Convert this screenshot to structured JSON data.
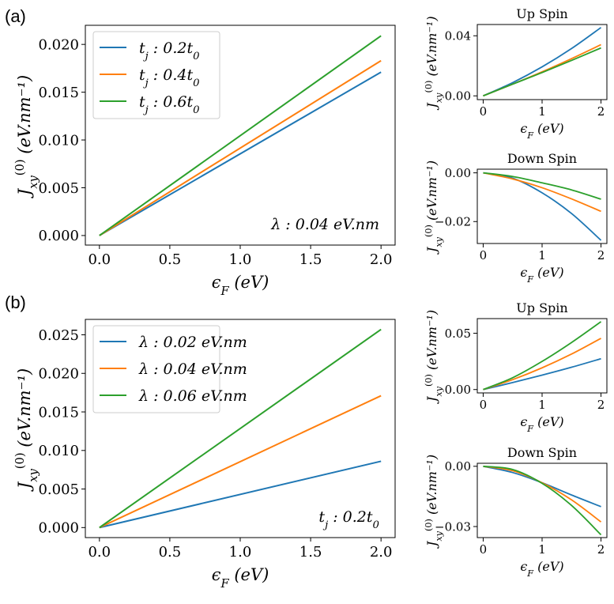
{
  "panel_labels": [
    "(a)",
    "(b)"
  ],
  "colors": {
    "blue": "#1f77b4",
    "orange": "#ff7f0e",
    "green": "#2ca02c",
    "axis": "#000000",
    "legend_border": "#cccccc"
  },
  "chart_data": [
    {
      "id": "a-main",
      "panel": "(a)",
      "type": "line",
      "title": "",
      "xlabel": "ϵ_F (eV)",
      "ylabel": "J_xy^(0) (eV.nm⁻¹)",
      "xlim": [
        -0.1,
        2.1
      ],
      "ylim": [
        -0.001,
        0.022
      ],
      "xticks": [
        0.0,
        0.5,
        1.0,
        1.5,
        2.0
      ],
      "xtick_labels": [
        "0.0",
        "0.5",
        "1.0",
        "1.5",
        "2.0"
      ],
      "yticks": [
        0.0,
        0.005,
        0.01,
        0.015,
        0.02
      ],
      "ytick_labels": [
        "0.000",
        "0.005",
        "0.010",
        "0.015",
        "0.020"
      ],
      "legend_position": "top-left",
      "annotation": "λ : 0.04 eV.nm",
      "grid": false,
      "series": [
        {
          "name": "t_j : 0.2t_0",
          "color": "blue",
          "x": [
            0,
            2
          ],
          "y": [
            0,
            0.0171
          ]
        },
        {
          "name": "t_j : 0.4t_0",
          "color": "orange",
          "x": [
            0,
            2
          ],
          "y": [
            0,
            0.0183
          ]
        },
        {
          "name": "t_j : 0.6t_0",
          "color": "green",
          "x": [
            0,
            2
          ],
          "y": [
            0,
            0.0209
          ]
        }
      ]
    },
    {
      "id": "a-up",
      "panel": "(a)",
      "type": "line",
      "title": "Up Spin",
      "xlabel": "ϵ_F (eV)",
      "ylabel": "J_xy^(0) (eV.nm⁻¹)",
      "xlim": [
        -0.1,
        2.1
      ],
      "ylim": [
        -0.0025,
        0.0475
      ],
      "xticks": [
        0,
        1,
        2
      ],
      "xtick_labels": [
        "0",
        "1",
        "2"
      ],
      "yticks": [
        0.0,
        0.04
      ],
      "ytick_labels": [
        "0.00",
        "0.04"
      ],
      "grid": false,
      "series": [
        {
          "color": "blue",
          "x": [
            0,
            0.5,
            1,
            1.5,
            2
          ],
          "y": [
            0,
            0.0088,
            0.0193,
            0.0315,
            0.0455
          ]
        },
        {
          "color": "orange",
          "x": [
            0,
            0.5,
            1,
            1.5,
            2
          ],
          "y": [
            0,
            0.0078,
            0.016,
            0.0248,
            0.0341
          ]
        },
        {
          "color": "green",
          "x": [
            0,
            0.5,
            1,
            1.5,
            2
          ],
          "y": [
            0,
            0.0078,
            0.0155,
            0.0236,
            0.0319
          ]
        }
      ]
    },
    {
      "id": "a-down",
      "panel": "(a)",
      "type": "line",
      "title": "Down Spin",
      "xlabel": "ϵ_F (eV)",
      "ylabel": "J_xy^(0) (eV.nm⁻¹)",
      "xlim": [
        -0.1,
        2.1
      ],
      "ylim": [
        -0.029,
        0.0015
      ],
      "xticks": [
        0,
        1,
        2
      ],
      "xtick_labels": [
        "0",
        "1",
        "2"
      ],
      "yticks": [
        -0.02,
        0.0
      ],
      "ytick_labels": [
        "−0.02",
        "0.00"
      ],
      "grid": false,
      "series": [
        {
          "color": "blue",
          "x": [
            0,
            0.5,
            1,
            1.5,
            2
          ],
          "y": [
            0,
            -0.0022,
            -0.0082,
            -0.0167,
            -0.0277
          ]
        },
        {
          "color": "orange",
          "x": [
            0,
            0.5,
            1,
            1.5,
            2
          ],
          "y": [
            0,
            -0.0025,
            -0.0061,
            -0.0107,
            -0.0158
          ]
        },
        {
          "color": "green",
          "x": [
            0,
            0.5,
            1,
            1.5,
            2
          ],
          "y": [
            0,
            -0.0015,
            -0.0041,
            -0.007,
            -0.0108
          ]
        }
      ]
    },
    {
      "id": "b-main",
      "panel": "(b)",
      "type": "line",
      "title": "",
      "xlabel": "ϵ_F (eV)",
      "ylabel": "J_xy^(0) (eV.nm⁻¹)",
      "xlim": [
        -0.1,
        2.1
      ],
      "ylim": [
        -0.0013,
        0.027
      ],
      "xticks": [
        0.0,
        0.5,
        1.0,
        1.5,
        2.0
      ],
      "xtick_labels": [
        "0.0",
        "0.5",
        "1.0",
        "1.5",
        "2.0"
      ],
      "yticks": [
        0.0,
        0.005,
        0.01,
        0.015,
        0.02,
        0.025
      ],
      "ytick_labels": [
        "0.000",
        "0.005",
        "0.010",
        "0.015",
        "0.020",
        "0.025"
      ],
      "legend_position": "top-left",
      "annotation": "t_j : 0.2t_0",
      "grid": false,
      "series": [
        {
          "name": "λ : 0.02 eV.nm",
          "color": "blue",
          "x": [
            0,
            2
          ],
          "y": [
            0,
            0.0086
          ]
        },
        {
          "name": "λ : 0.04 eV.nm",
          "color": "orange",
          "x": [
            0,
            2
          ],
          "y": [
            0,
            0.0171
          ]
        },
        {
          "name": "λ : 0.06 eV.nm",
          "color": "green",
          "x": [
            0,
            2
          ],
          "y": [
            0,
            0.0257
          ]
        }
      ]
    },
    {
      "id": "b-up",
      "panel": "(b)",
      "type": "line",
      "title": "Up Spin",
      "xlabel": "ϵ_F (eV)",
      "ylabel": "J_xy^(0) (eV.nm⁻¹)",
      "xlim": [
        -0.1,
        2.1
      ],
      "ylim": [
        -0.003,
        0.063
      ],
      "xticks": [
        0,
        1,
        2
      ],
      "xtick_labels": [
        "0",
        "1",
        "2"
      ],
      "yticks": [
        0.0,
        0.05
      ],
      "ytick_labels": [
        "0.00",
        "0.05"
      ],
      "grid": false,
      "series": [
        {
          "color": "blue",
          "x": [
            0,
            0.5,
            1,
            1.5,
            2
          ],
          "y": [
            0,
            0.0062,
            0.0128,
            0.0198,
            0.0274
          ]
        },
        {
          "color": "orange",
          "x": [
            0,
            0.5,
            1,
            1.5,
            2
          ],
          "y": [
            0,
            0.0088,
            0.0193,
            0.0315,
            0.0455
          ]
        },
        {
          "color": "green",
          "x": [
            0,
            0.5,
            1,
            1.5,
            2
          ],
          "y": [
            0,
            0.0105,
            0.025,
            0.0418,
            0.0603
          ]
        }
      ]
    },
    {
      "id": "b-down",
      "panel": "(b)",
      "type": "line",
      "title": "Down Spin",
      "xlabel": "ϵ_F (eV)",
      "ylabel": "J_xy^(0) (eV.nm⁻¹)",
      "xlim": [
        -0.1,
        2.1
      ],
      "ylim": [
        -0.0355,
        0.0015
      ],
      "xticks": [
        0,
        1,
        2
      ],
      "xtick_labels": [
        "0",
        "1",
        "2"
      ],
      "yticks": [
        -0.03,
        0.0
      ],
      "ytick_labels": [
        "−0.03",
        "0.00"
      ],
      "grid": false,
      "series": [
        {
          "color": "blue",
          "x": [
            0,
            0.5,
            1,
            1.5,
            2
          ],
          "y": [
            0,
            -0.0031,
            -0.0082,
            -0.0143,
            -0.0201
          ]
        },
        {
          "color": "orange",
          "x": [
            0,
            0.5,
            1,
            1.5,
            2
          ],
          "y": [
            0,
            -0.0022,
            -0.0082,
            -0.0167,
            -0.0277
          ]
        },
        {
          "color": "green",
          "x": [
            0,
            0.5,
            1,
            1.5,
            2
          ],
          "y": [
            0,
            -0.0016,
            -0.0085,
            -0.0195,
            -0.0341
          ]
        }
      ]
    }
  ]
}
